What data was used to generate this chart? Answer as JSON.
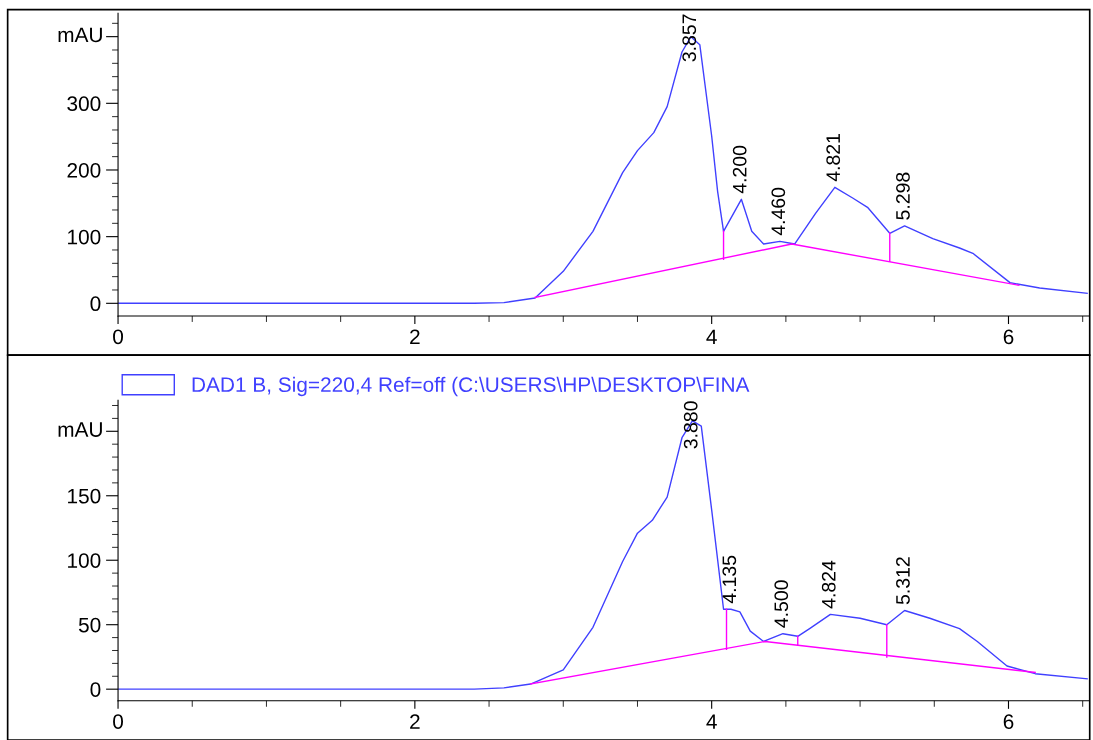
{
  "chart_data": [
    {
      "type": "line",
      "ylabel": "mAU",
      "xlim": [
        0,
        6.54
      ],
      "ylim": [
        -19,
        435
      ],
      "xticks": [
        0,
        2,
        4,
        6
      ],
      "yticks": [
        0,
        100,
        200,
        300,
        {
          "value": 400,
          "label": null
        }
      ],
      "marker": "none",
      "line_style": "solid",
      "grid": false,
      "series": [
        {
          "color": "#4040ff",
          "x": [
            0,
            2.4,
            2.6,
            2.81,
            3.0,
            3.2,
            3.4,
            3.5,
            3.61,
            3.7,
            3.8,
            3.86,
            3.92,
            4.0,
            4.04,
            4.08,
            4.2,
            4.27,
            4.35,
            4.46,
            4.56,
            4.7,
            4.83,
            4.95,
            5.05,
            5.2,
            5.3,
            5.49,
            5.67,
            5.76,
            6.01,
            6.21,
            6.53
          ],
          "values": [
            0,
            0,
            1,
            8,
            48,
            108,
            196,
            229,
            256,
            295,
            377,
            400,
            388,
            251,
            168,
            108,
            156,
            108,
            89,
            93,
            89,
            135,
            174,
            158,
            144,
            105,
            116,
            97,
            83,
            75,
            31,
            23,
            15
          ]
        },
        {
          "color": "#ff00ff",
          "x": [
            2.81,
            4.54,
            6.07
          ],
          "values": [
            9,
            89,
            27
          ]
        },
        {
          "color": "#ff00ff",
          "x": [
            4.08,
            4.08
          ],
          "values": [
            66,
            108
          ]
        },
        {
          "color": "#ff00ff",
          "x": [
            5.2,
            5.2
          ],
          "values": [
            63,
            105
          ]
        }
      ],
      "annotations": [
        {
          "text": "3.857",
          "x": 3.86,
          "y": 400
        },
        {
          "text": "4.200",
          "x": 4.2,
          "y": 156
        },
        {
          "text": "4.460",
          "x": 4.46,
          "y": 93
        },
        {
          "text": "4.821",
          "x": 4.83,
          "y": 174
        },
        {
          "text": "5.298",
          "x": 5.3,
          "y": 116
        }
      ]
    },
    {
      "type": "line",
      "ylabel": "mAU",
      "xlim": [
        0,
        6.54
      ],
      "ylim": [
        -9,
        224
      ],
      "xticks": [
        0,
        2,
        4,
        6
      ],
      "yticks": [
        0,
        50,
        100,
        150,
        {
          "value": 200,
          "label": null
        }
      ],
      "marker": "none",
      "line_style": "solid",
      "grid": false,
      "legend": "top",
      "series": [
        {
          "name": "DAD1 B, Sig=220,4 Ref=off (C:\\USERS\\HP\\DESKTOP\\FINA",
          "color": "#4040ff",
          "x": [
            0,
            2.4,
            2.6,
            2.78,
            3.0,
            3.2,
            3.4,
            3.5,
            3.6,
            3.7,
            3.8,
            3.87,
            3.93,
            4.0,
            4.08,
            4.13,
            4.19,
            4.26,
            4.35,
            4.48,
            4.58,
            4.66,
            4.8,
            5.0,
            5.18,
            5.3,
            5.47,
            5.67,
            5.79,
            5.99,
            6.18,
            6.53
          ],
          "values": [
            0,
            0,
            1,
            4,
            15,
            48,
            99,
            121,
            131,
            149,
            195,
            208,
            204,
            139,
            62,
            62,
            60,
            45,
            37,
            43,
            41,
            47,
            58,
            55,
            50,
            61,
            55,
            47,
            37,
            18,
            12,
            8
          ]
        },
        {
          "color": "#ff00ff",
          "x": [
            2.78,
            4.36,
            6.18
          ],
          "values": [
            4,
            37,
            13
          ]
        },
        {
          "color": "#ff00ff",
          "x": [
            4.1,
            4.1
          ],
          "values": [
            31,
            62
          ]
        },
        {
          "color": "#ff00ff",
          "x": [
            4.58,
            4.58
          ],
          "values": [
            34,
            41
          ]
        },
        {
          "color": "#ff00ff",
          "x": [
            5.18,
            5.18
          ],
          "values": [
            25,
            50
          ]
        }
      ],
      "annotations": [
        {
          "text": "3.880",
          "x": 3.87,
          "y": 208
        },
        {
          "text": "4.135",
          "x": 4.13,
          "y": 62
        },
        {
          "text": "4.500",
          "x": 4.48,
          "y": 43
        },
        {
          "text": "4.824",
          "x": 4.8,
          "y": 58
        },
        {
          "text": "5.312",
          "x": 5.3,
          "y": 61
        }
      ]
    }
  ]
}
